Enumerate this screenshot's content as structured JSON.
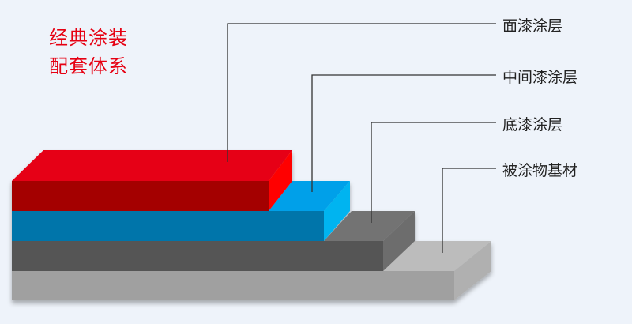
{
  "title": {
    "line1": "经典涂装",
    "line2": "配套体系"
  },
  "layers": [
    {
      "label": "面漆涂层",
      "colors": {
        "front": "#a40000",
        "top": "#e60012",
        "side": "#ff0000"
      }
    },
    {
      "label": "中间漆涂层",
      "colors": {
        "front": "#0075aa",
        "top": "#00a0e9",
        "side": "#00b4f0"
      }
    },
    {
      "label": "底漆涂层",
      "colors": {
        "front": "#555555",
        "top": "#737373",
        "side": "#6d6d6d"
      }
    },
    {
      "label": "被涂物基材",
      "colors": {
        "front": "#a0a0a0",
        "top": "#bcbcbc",
        "side": "#b0b0b0"
      }
    }
  ]
}
